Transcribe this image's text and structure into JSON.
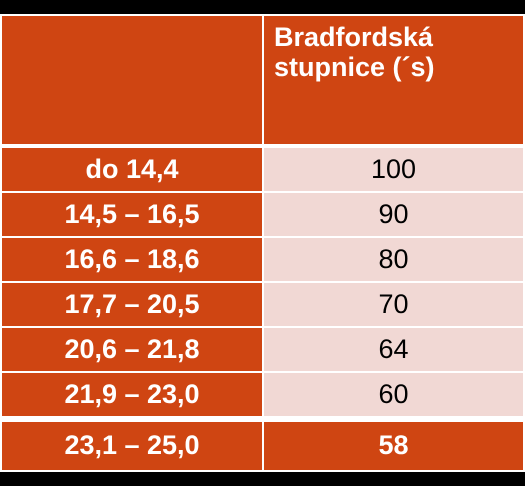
{
  "table": {
    "header": {
      "col1": "",
      "col2": "Bradfordská stupnice (´s)"
    },
    "rows": [
      {
        "range": "do 14,4",
        "value": "100"
      },
      {
        "range": "14,5 – 16,5",
        "value": "90"
      },
      {
        "range": "16,6 – 18,6",
        "value": "80"
      },
      {
        "range": "17,7 – 20,5",
        "value": "70"
      },
      {
        "range": "20,6 – 21,8",
        "value": "64"
      },
      {
        "range": "21,9 – 23,0",
        "value": "60"
      },
      {
        "range": "23,1 – 25,0",
        "value": "58"
      }
    ],
    "colors": {
      "header_bg": "#cf4512",
      "value_bg": "#f1d8d4",
      "last_row_value_bg": "#cf4512",
      "grid": "#ffffff"
    }
  }
}
